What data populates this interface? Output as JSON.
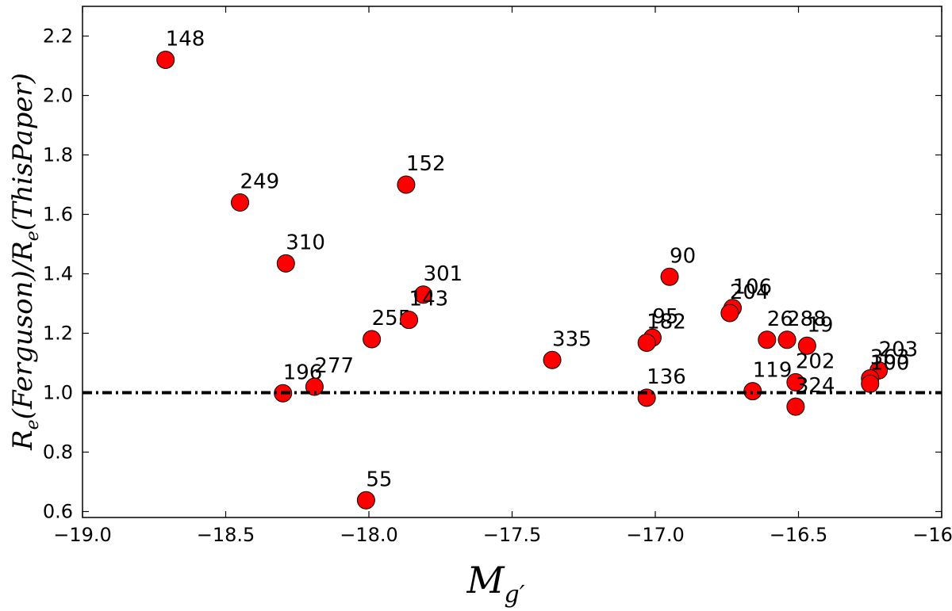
{
  "colors": {
    "marker_fill": "#ff0000",
    "marker_edge": "#000000",
    "reference_line": "#000000"
  },
  "chart_data": {
    "type": "scatter",
    "title": "",
    "xlabel": {
      "main": "M",
      "sub": "g′"
    },
    "ylabel": {
      "main": "R",
      "sub1": "e",
      "mid": "(Ferguson)/R",
      "sub2": "e",
      "tail": "(ThisPaper)"
    },
    "xlim": [
      -19.0,
      -16.0
    ],
    "ylim": [
      0.58,
      2.3
    ],
    "xticks": [
      "−19.0",
      "−18.5",
      "−18.0",
      "−17.5",
      "−17.0",
      "−16.5",
      "−16.0"
    ],
    "xtick_values": [
      -19.0,
      -18.5,
      -18.0,
      -17.5,
      -17.0,
      -16.5,
      -16.0
    ],
    "yticks": [
      "0.6",
      "0.8",
      "1.0",
      "1.2",
      "1.4",
      "1.6",
      "1.8",
      "2.0",
      "2.2"
    ],
    "ytick_values": [
      0.6,
      0.8,
      1.0,
      1.2,
      1.4,
      1.6,
      1.8,
      2.0,
      2.2
    ],
    "reference_line": {
      "y": 1.0,
      "style": "dash-dot"
    },
    "points": [
      {
        "label": "148",
        "x": -18.71,
        "y": 2.12
      },
      {
        "label": "249",
        "x": -18.45,
        "y": 1.64
      },
      {
        "label": "310",
        "x": -18.29,
        "y": 1.435
      },
      {
        "label": "196",
        "x": -18.3,
        "y": 0.998
      },
      {
        "label": "277",
        "x": -18.19,
        "y": 1.02
      },
      {
        "label": "255",
        "x": -17.99,
        "y": 1.18
      },
      {
        "label": "55",
        "x": -18.01,
        "y": 0.638
      },
      {
        "label": "152",
        "x": -17.87,
        "y": 1.7
      },
      {
        "label": "301",
        "x": -17.81,
        "y": 1.33
      },
      {
        "label": "143",
        "x": -17.86,
        "y": 1.245
      },
      {
        "label": "335",
        "x": -17.36,
        "y": 1.11
      },
      {
        "label": "95",
        "x": -17.01,
        "y": 1.185
      },
      {
        "label": "182",
        "x": -17.03,
        "y": 1.168
      },
      {
        "label": "136",
        "x": -17.03,
        "y": 0.983
      },
      {
        "label": "90",
        "x": -16.95,
        "y": 1.39
      },
      {
        "label": "106",
        "x": -16.73,
        "y": 1.285
      },
      {
        "label": "204",
        "x": -16.74,
        "y": 1.268
      },
      {
        "label": "26",
        "x": -16.61,
        "y": 1.178
      },
      {
        "label": "288",
        "x": -16.54,
        "y": 1.178
      },
      {
        "label": "19",
        "x": -16.47,
        "y": 1.158
      },
      {
        "label": "119",
        "x": -16.66,
        "y": 1.005
      },
      {
        "label": "202",
        "x": -16.51,
        "y": 1.035
      },
      {
        "label": "324",
        "x": -16.51,
        "y": 0.953
      },
      {
        "label": "203",
        "x": -16.22,
        "y": 1.075
      },
      {
        "label": "363",
        "x": -16.25,
        "y": 1.048
      },
      {
        "label": "100",
        "x": -16.25,
        "y": 1.03
      }
    ]
  }
}
